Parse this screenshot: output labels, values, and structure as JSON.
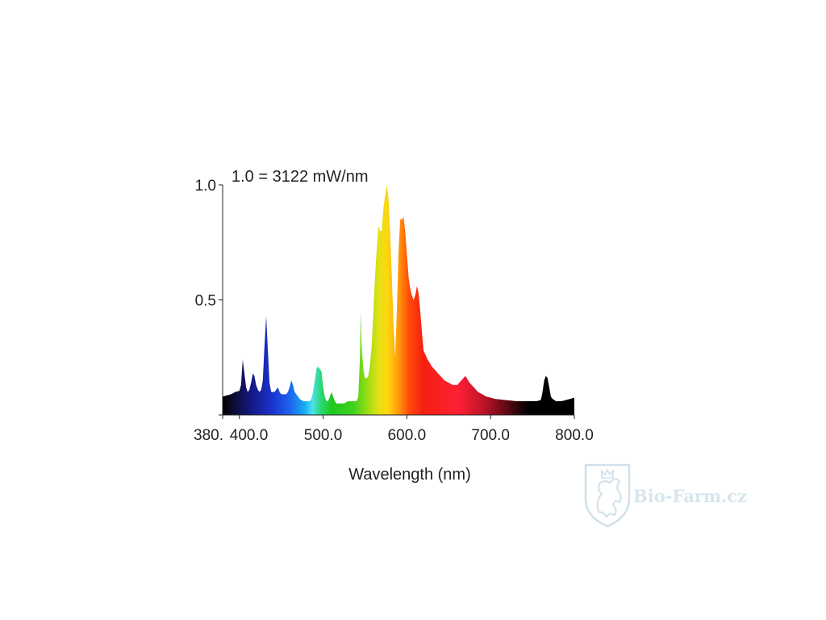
{
  "chart_data": {
    "type": "area",
    "title": "",
    "annotation": "1.0 = 3122 mW/nm",
    "xlabel": "Wavelength (nm)",
    "ylabel": "",
    "xlim": [
      380,
      800
    ],
    "ylim": [
      0,
      1.0
    ],
    "x_ticks": [
      {
        "value": 380,
        "label": "380."
      },
      {
        "value": 400,
        "label": "400.0"
      },
      {
        "value": 500,
        "label": "500.0"
      },
      {
        "value": 600,
        "label": "600.0"
      },
      {
        "value": 700,
        "label": "700.0"
      },
      {
        "value": 800,
        "label": "800.0"
      }
    ],
    "y_ticks": [
      {
        "value": 0.5,
        "label": "0.5"
      },
      {
        "value": 1.0,
        "label": "1.0"
      }
    ],
    "fill": "wavelength color gradient",
    "grid": false,
    "series": [
      {
        "x": [
          380,
          385,
          390,
          395,
          400,
          402,
          404,
          406,
          408,
          410,
          412,
          414,
          416,
          418,
          420,
          422,
          424,
          426,
          428,
          430,
          432,
          434,
          436,
          438,
          440,
          442,
          444,
          446,
          448,
          450,
          452,
          454,
          456,
          458,
          460,
          462,
          464,
          466,
          468,
          470,
          472,
          474,
          476,
          478,
          480,
          482,
          484,
          486,
          488,
          490,
          492,
          494,
          496,
          498,
          500,
          502,
          504,
          506,
          508,
          510,
          512,
          514,
          516,
          518,
          520,
          525,
          530,
          535,
          540,
          542,
          544,
          545,
          546,
          548,
          550,
          552,
          554,
          556,
          558,
          560,
          562,
          564,
          566,
          568,
          570,
          572,
          574,
          576,
          578,
          580,
          582,
          584,
          586,
          588,
          590,
          592,
          594,
          596,
          598,
          600,
          602,
          604,
          606,
          608,
          610,
          612,
          614,
          616,
          618,
          620,
          625,
          630,
          635,
          640,
          645,
          650,
          655,
          660,
          665,
          670,
          675,
          680,
          685,
          690,
          695,
          700,
          705,
          710,
          715,
          720,
          725,
          730,
          735,
          740,
          745,
          750,
          755,
          760,
          762,
          764,
          766,
          768,
          770,
          772,
          774,
          776,
          778,
          780,
          785,
          790,
          795,
          800
        ],
        "y": [
          0.08,
          0.085,
          0.09,
          0.1,
          0.105,
          0.13,
          0.24,
          0.18,
          0.12,
          0.1,
          0.11,
          0.14,
          0.18,
          0.17,
          0.13,
          0.11,
          0.1,
          0.11,
          0.15,
          0.3,
          0.43,
          0.28,
          0.14,
          0.1,
          0.1,
          0.1,
          0.11,
          0.12,
          0.1,
          0.09,
          0.09,
          0.09,
          0.09,
          0.1,
          0.12,
          0.15,
          0.13,
          0.1,
          0.09,
          0.08,
          0.07,
          0.065,
          0.06,
          0.06,
          0.06,
          0.06,
          0.06,
          0.07,
          0.1,
          0.15,
          0.2,
          0.21,
          0.2,
          0.19,
          0.12,
          0.08,
          0.06,
          0.06,
          0.08,
          0.1,
          0.08,
          0.06,
          0.05,
          0.05,
          0.05,
          0.05,
          0.06,
          0.06,
          0.06,
          0.08,
          0.25,
          0.45,
          0.3,
          0.2,
          0.16,
          0.16,
          0.17,
          0.22,
          0.3,
          0.45,
          0.6,
          0.72,
          0.82,
          0.8,
          0.8,
          0.9,
          0.95,
          1.0,
          0.95,
          0.8,
          0.6,
          0.4,
          0.25,
          0.45,
          0.7,
          0.85,
          0.85,
          0.86,
          0.8,
          0.7,
          0.6,
          0.55,
          0.52,
          0.5,
          0.52,
          0.56,
          0.53,
          0.45,
          0.36,
          0.28,
          0.24,
          0.21,
          0.19,
          0.17,
          0.15,
          0.14,
          0.13,
          0.13,
          0.15,
          0.17,
          0.14,
          0.12,
          0.1,
          0.09,
          0.08,
          0.075,
          0.07,
          0.068,
          0.066,
          0.064,
          0.062,
          0.06,
          0.06,
          0.06,
          0.06,
          0.06,
          0.06,
          0.065,
          0.1,
          0.15,
          0.17,
          0.16,
          0.12,
          0.08,
          0.07,
          0.065,
          0.06,
          0.06,
          0.06,
          0.065,
          0.07,
          0.075
        ]
      }
    ]
  },
  "watermark": {
    "text": "Bio-Farm.cz",
    "color": "#d6e6ee",
    "icon": "shield-lion-icon"
  }
}
